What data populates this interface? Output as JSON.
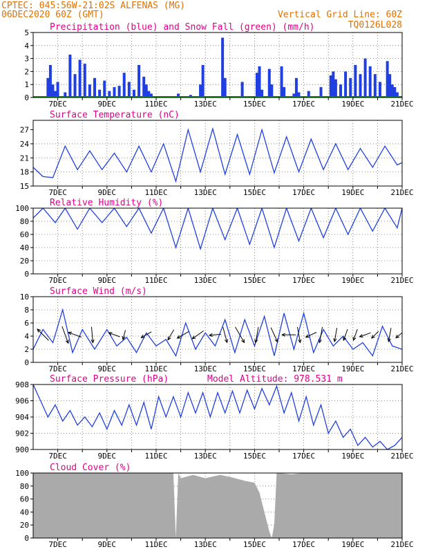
{
  "header": {
    "line1": "CPTEC:  045:56W-21:02S  ALFENAS (MG)",
    "line2": "06DEC2020 60Z (GMT)",
    "grid_note": "Vertical Grid Line: 60Z",
    "code": "TQ0126L028"
  },
  "colors": {
    "header": "#e07000",
    "title": "#e0008a",
    "line": "#1f3fe0",
    "precip": "#1f3fe0",
    "snow": "#009900",
    "cloud": "#aaaaaa",
    "wind_arrow": "#000000"
  },
  "date_ticks": [
    "7DEC",
    "9DEC",
    "11DEC",
    "13DEC",
    "15DEC",
    "17DEC",
    "19DEC",
    "21DEC"
  ],
  "chart_data": [
    {
      "id": "precip",
      "type": "bar",
      "title": "Precipitation (blue) and Snow Fall (green) (mm/h)",
      "ylim": [
        0,
        5
      ],
      "yticks": [
        0,
        1,
        2,
        3,
        4,
        5
      ],
      "grid": true,
      "x_start": "6DEC",
      "x_end": "21DEC",
      "series": [
        {
          "name": "Precipitation",
          "x": [
            6.6,
            6.7,
            6.8,
            6.9,
            7.0,
            7.3,
            7.5,
            7.7,
            7.9,
            8.1,
            8.3,
            8.5,
            8.7,
            8.9,
            9.1,
            9.3,
            9.5,
            9.7,
            9.9,
            10.1,
            10.3,
            10.5,
            10.6,
            10.7,
            10.8,
            11.9,
            12.4,
            12.8,
            12.9,
            13.7,
            13.8,
            14.5,
            15.1,
            15.2,
            15.3,
            15.6,
            15.7,
            16.1,
            16.2,
            16.6,
            16.7,
            16.8,
            17.2,
            17.7,
            18.1,
            18.2,
            18.3,
            18.5,
            18.7,
            18.9,
            19.1,
            19.3,
            19.5,
            19.7,
            19.9,
            20.1,
            20.4,
            20.5,
            20.6,
            20.7,
            20.8
          ],
          "values": [
            1.5,
            2.5,
            1.0,
            0.5,
            1.2,
            0.4,
            3.3,
            1.8,
            2.9,
            2.6,
            1.0,
            1.5,
            0.6,
            1.3,
            0.5,
            0.8,
            0.9,
            1.9,
            1.2,
            0.6,
            2.5,
            1.6,
            1.0,
            0.5,
            0.3,
            0.3,
            0.2,
            1.0,
            2.5,
            4.6,
            1.5,
            1.2,
            1.9,
            2.4,
            0.6,
            2.2,
            1.0,
            2.4,
            0.8,
            0.3,
            1.5,
            0.4,
            0.5,
            0.8,
            1.7,
            2.0,
            1.4,
            1.0,
            2.0,
            1.5,
            2.5,
            1.8,
            3.0,
            2.4,
            1.8,
            1.2,
            2.8,
            1.8,
            1.0,
            0.8,
            0.4
          ]
        },
        {
          "name": "Snow Fall",
          "values": [
            0
          ]
        }
      ]
    },
    {
      "id": "temp",
      "type": "line",
      "title": "Surface Temperature (nC)",
      "ylim": [
        15,
        29
      ],
      "yticks": [
        15,
        18,
        21,
        24,
        27
      ],
      "grid": true,
      "x": [
        6.0,
        6.4,
        6.8,
        7.3,
        7.8,
        8.3,
        8.8,
        9.3,
        9.8,
        10.3,
        10.8,
        11.3,
        11.8,
        12.3,
        12.8,
        13.3,
        13.8,
        14.3,
        14.8,
        15.3,
        15.8,
        16.3,
        16.8,
        17.3,
        17.8,
        18.3,
        18.8,
        19.3,
        19.8,
        20.3,
        20.8,
        21.0
      ],
      "values": [
        19.0,
        17.0,
        16.8,
        23.5,
        18.5,
        22.5,
        18.5,
        22.0,
        18.0,
        23.5,
        18.0,
        24.0,
        16.0,
        27.0,
        18.0,
        27.2,
        17.5,
        26.0,
        17.5,
        27.0,
        17.8,
        25.5,
        18.0,
        25.0,
        18.5,
        24.0,
        18.5,
        23.0,
        19.0,
        23.5,
        19.5,
        20.0
      ]
    },
    {
      "id": "rh",
      "type": "line",
      "title": "Relative Humidity (%)",
      "ylim": [
        0,
        100
      ],
      "yticks": [
        0,
        20,
        40,
        60,
        80,
        100
      ],
      "grid": true,
      "x": [
        6.0,
        6.4,
        6.9,
        7.3,
        7.8,
        8.3,
        8.8,
        9.3,
        9.8,
        10.3,
        10.8,
        11.3,
        11.8,
        12.3,
        12.8,
        13.3,
        13.8,
        14.3,
        14.8,
        15.3,
        15.8,
        16.3,
        16.8,
        17.3,
        17.8,
        18.3,
        18.8,
        19.3,
        19.8,
        20.3,
        20.8,
        21.0
      ],
      "values": [
        85,
        100,
        78,
        100,
        68,
        100,
        78,
        100,
        72,
        100,
        62,
        100,
        40,
        100,
        38,
        100,
        52,
        100,
        45,
        100,
        40,
        100,
        50,
        100,
        55,
        100,
        60,
        100,
        65,
        100,
        70,
        100
      ]
    },
    {
      "id": "wind",
      "type": "line",
      "title": "Surface Wind (m/s)",
      "ylim": [
        0,
        10
      ],
      "yticks": [
        0,
        2,
        4,
        6,
        8,
        10
      ],
      "grid": true,
      "x": [
        6.0,
        6.4,
        6.8,
        7.2,
        7.6,
        8.0,
        8.5,
        9.0,
        9.4,
        9.8,
        10.2,
        10.6,
        11.0,
        11.4,
        11.8,
        12.2,
        12.6,
        13.0,
        13.4,
        13.8,
        14.2,
        14.6,
        15.0,
        15.4,
        15.8,
        16.2,
        16.6,
        17.0,
        17.4,
        17.8,
        18.2,
        18.6,
        19.0,
        19.4,
        19.8,
        20.2,
        20.6,
        21.0
      ],
      "values": [
        2.0,
        5.0,
        3.0,
        8.0,
        1.5,
        5.0,
        2.0,
        5.0,
        2.5,
        3.8,
        1.5,
        4.5,
        2.5,
        3.5,
        1.0,
        6.0,
        2.0,
        4.5,
        2.5,
        6.5,
        1.5,
        6.5,
        2.5,
        7.0,
        1.0,
        7.5,
        2.0,
        7.5,
        1.5,
        5.0,
        2.5,
        4.0,
        2.0,
        3.0,
        1.0,
        5.5,
        2.5,
        2.0
      ],
      "arrows": [
        {
          "x": 6.4,
          "dir_deg": 225,
          "speed": 5
        },
        {
          "x": 7.3,
          "dir_deg": 20,
          "speed": 6
        },
        {
          "x": 7.7,
          "dir_deg": 250,
          "speed": 4
        },
        {
          "x": 8.4,
          "dir_deg": 5,
          "speed": 5
        },
        {
          "x": 9.3,
          "dir_deg": 250,
          "speed": 3
        },
        {
          "x": 9.7,
          "dir_deg": 345,
          "speed": 2
        },
        {
          "x": 10.6,
          "dir_deg": 300,
          "speed": 3
        },
        {
          "x": 11.6,
          "dir_deg": 330,
          "speed": 3
        },
        {
          "x": 12.1,
          "dir_deg": 300,
          "speed": 4
        },
        {
          "x": 12.7,
          "dir_deg": 305,
          "speed": 4
        },
        {
          "x": 13.4,
          "dir_deg": 275,
          "speed": 3
        },
        {
          "x": 13.8,
          "dir_deg": 15,
          "speed": 5
        },
        {
          "x": 14.4,
          "dir_deg": 30,
          "speed": 6
        },
        {
          "x": 15.1,
          "dir_deg": 350,
          "speed": 5
        },
        {
          "x": 15.8,
          "dir_deg": 25,
          "speed": 5
        },
        {
          "x": 16.4,
          "dir_deg": 270,
          "speed": 4
        },
        {
          "x": 16.8,
          "dir_deg": 10,
          "speed": 5
        },
        {
          "x": 17.3,
          "dir_deg": 295,
          "speed": 3
        },
        {
          "x": 17.7,
          "dir_deg": 350,
          "speed": 5
        },
        {
          "x": 18.3,
          "dir_deg": 350,
          "speed": 4
        },
        {
          "x": 18.7,
          "dir_deg": 340,
          "speed": 3
        },
        {
          "x": 19.1,
          "dir_deg": 340,
          "speed": 3
        },
        {
          "x": 19.5,
          "dir_deg": 290,
          "speed": 3
        },
        {
          "x": 19.9,
          "dir_deg": 315,
          "speed": 2
        },
        {
          "x": 20.5,
          "dir_deg": 350,
          "speed": 4
        },
        {
          "x": 20.9,
          "dir_deg": 310,
          "speed": 2
        }
      ]
    },
    {
      "id": "pres",
      "type": "line",
      "title": "Surface Pressure (hPa)",
      "subtitle": "Model Altitude: 978.531 m",
      "ylim": [
        900,
        908
      ],
      "yticks": [
        900,
        902,
        904,
        906,
        908
      ],
      "grid": true,
      "x": [
        6.0,
        6.3,
        6.6,
        6.9,
        7.2,
        7.5,
        7.8,
        8.1,
        8.4,
        8.7,
        9.0,
        9.3,
        9.6,
        9.9,
        10.2,
        10.5,
        10.8,
        11.1,
        11.4,
        11.7,
        12.0,
        12.3,
        12.6,
        12.9,
        13.2,
        13.5,
        13.8,
        14.1,
        14.4,
        14.7,
        15.0,
        15.3,
        15.6,
        15.9,
        16.2,
        16.5,
        16.8,
        17.1,
        17.4,
        17.7,
        18.0,
        18.3,
        18.6,
        18.9,
        19.2,
        19.5,
        19.8,
        20.1,
        20.4,
        20.7,
        21.0
      ],
      "values": [
        908,
        906,
        904,
        905.5,
        903.5,
        904.8,
        903,
        904,
        902.8,
        904.5,
        902.5,
        904.8,
        903,
        905.5,
        903,
        905.8,
        902.5,
        906.5,
        904,
        906.5,
        904,
        907,
        904.5,
        907,
        904,
        907,
        904.5,
        907.2,
        904.5,
        907.3,
        905,
        907.5,
        905.5,
        907.8,
        904.5,
        907,
        903.5,
        906.5,
        903,
        905.5,
        902,
        903.5,
        901.5,
        902.5,
        900.5,
        901.5,
        900.3,
        901,
        900,
        900.5,
        901.5
      ]
    },
    {
      "id": "cloud",
      "type": "area",
      "title": "Cloud Cover (%)",
      "ylim": [
        0,
        100
      ],
      "yticks": [
        0,
        20,
        40,
        60,
        80,
        100
      ],
      "grid": true,
      "x": [
        6.0,
        11.7,
        11.8,
        11.9,
        12.0,
        12.5,
        13.0,
        13.6,
        14.0,
        14.6,
        15.0,
        15.2,
        15.4,
        15.6,
        15.7,
        15.8,
        15.9,
        16.0,
        16.5,
        17.0,
        18.0,
        19.0,
        21.0
      ],
      "values": [
        100,
        100,
        0,
        100,
        92,
        97,
        92,
        97,
        94,
        88,
        85,
        70,
        40,
        10,
        0,
        20,
        100,
        100,
        98,
        100,
        100,
        100,
        100
      ]
    }
  ]
}
